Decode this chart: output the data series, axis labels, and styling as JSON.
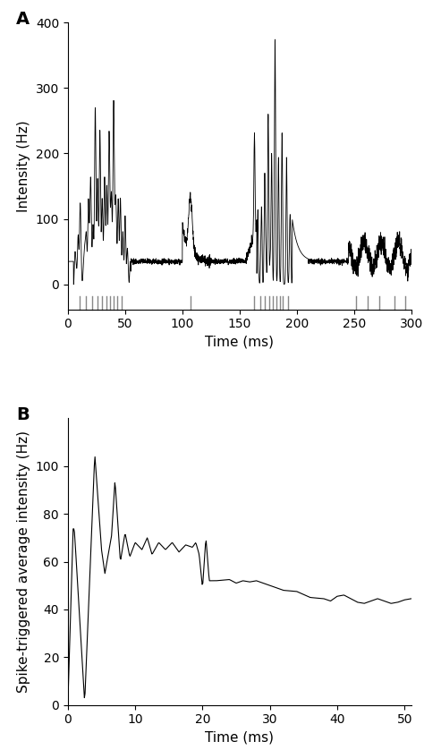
{
  "panel_A": {
    "ylabel": "Intensity (Hz)",
    "xlabel": "Time (ms)",
    "xlim": [
      0,
      300
    ],
    "ylim_display": [
      0,
      400
    ],
    "ylim_full": [
      -45,
      400
    ],
    "yticks": [
      0,
      100,
      200,
      300,
      400
    ],
    "xticks": [
      0,
      50,
      100,
      150,
      200,
      250,
      300
    ],
    "spike_times": [
      10,
      16,
      21,
      26,
      30,
      34,
      37,
      40,
      43,
      47,
      107,
      163,
      168,
      172,
      176,
      179,
      182,
      185,
      188,
      192,
      252,
      262,
      272,
      285,
      295
    ],
    "spike_color": "#888888"
  },
  "panel_B": {
    "ylabel": "Spike-triggered average intensity (Hz)",
    "xlabel": "Time (ms)",
    "xlim": [
      0,
      51
    ],
    "ylim": [
      0,
      120
    ],
    "yticks": [
      0,
      20,
      40,
      60,
      80,
      100
    ],
    "xticks": [
      0,
      10,
      20,
      30,
      40,
      50
    ]
  },
  "line_color": "#000000",
  "background_color": "#ffffff",
  "label_fontsize": 11,
  "tick_fontsize": 10,
  "panel_label_fontsize": 14
}
